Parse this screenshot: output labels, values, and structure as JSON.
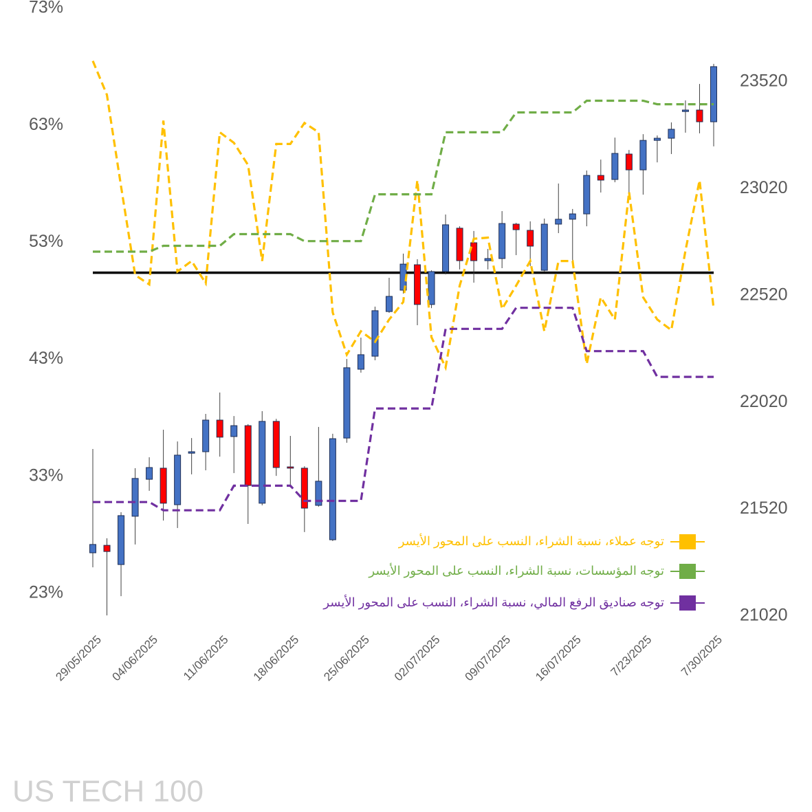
{
  "chart_data": {
    "type": "candlestick",
    "watermark": "US TECH 100",
    "categories": [
      "29/05/2025",
      null,
      null,
      null,
      "04/06/2025",
      null,
      null,
      null,
      null,
      "11/06/2025",
      null,
      null,
      null,
      null,
      "18/06/2025",
      null,
      null,
      null,
      null,
      "25/06/2025",
      null,
      null,
      null,
      null,
      "02/07/2025",
      null,
      null,
      null,
      null,
      "09/07/2025",
      null,
      null,
      null,
      null,
      "16/07/2025",
      null,
      null,
      null,
      null,
      "7/23/2025",
      null,
      null,
      null,
      null,
      "7/30/2025"
    ],
    "candles": {
      "axis": "y2",
      "up_color": "#4472c4",
      "down_color": "#ff0000",
      "open": [
        21316,
        21351,
        21261,
        21487,
        21660,
        21712,
        21541,
        21782,
        21789,
        21937,
        21860,
        21911,
        21548,
        21931,
        21718,
        21712,
        21538,
        21377,
        21853,
        22175,
        22236,
        22445,
        22545,
        22664,
        22478,
        22632,
        22835,
        22767,
        22683,
        22693,
        22854,
        22825,
        22638,
        22854,
        22877,
        22902,
        23082,
        23063,
        23182,
        23108,
        23246,
        23256,
        23381,
        23388,
        23333
      ],
      "high": [
        21802,
        21384,
        21506,
        21712,
        21763,
        21892,
        21837,
        21853,
        21966,
        22066,
        21956,
        21918,
        21979,
        21943,
        21863,
        21721,
        21905,
        21873,
        22223,
        22323,
        22468,
        22603,
        22716,
        22690,
        22638,
        22899,
        22844,
        22822,
        22738,
        22915,
        22860,
        22867,
        22880,
        23044,
        22925,
        23105,
        23156,
        23259,
        23201,
        23275,
        23269,
        23330,
        23433,
        23510,
        23604
      ],
      "low": [
        21248,
        21023,
        21113,
        21355,
        21606,
        21467,
        21432,
        21683,
        21702,
        21766,
        21689,
        21451,
        21538,
        21676,
        21622,
        21413,
        21532,
        21371,
        21831,
        22159,
        22217,
        22439,
        22529,
        22381,
        22461,
        22619,
        22642,
        22580,
        22642,
        22648,
        22709,
        22658,
        22629,
        22812,
        22664,
        22844,
        23002,
        23050,
        23002,
        22992,
        23143,
        23182,
        23282,
        23279,
        23218
      ],
      "close": [
        21355,
        21322,
        21490,
        21664,
        21715,
        21548,
        21773,
        21789,
        21937,
        21857,
        21911,
        21631,
        21931,
        21715,
        21712,
        21525,
        21651,
        21850,
        22182,
        22243,
        22449,
        22516,
        22667,
        22478,
        22632,
        22851,
        22683,
        22683,
        22693,
        22857,
        22828,
        22751,
        22854,
        22877,
        22902,
        23082,
        23060,
        23185,
        23108,
        23246,
        23256,
        23298,
        23388,
        23333,
        23591
      ]
    },
    "series": [
      {
        "name": "توجه عملاء، نسبة الشراء، النسب على المحور الأيسر",
        "color": "#ffc000",
        "values": [
          68.5,
          65.6,
          57.8,
          50.2,
          49.4,
          63.4,
          50.5,
          51.4,
          49.5,
          62.4,
          61.5,
          59.6,
          51.4,
          61.4,
          61.4,
          63.2,
          62.4,
          47.0,
          43.4,
          45.4,
          44.5,
          46.4,
          47.9,
          58.3,
          44.9,
          42.3,
          49.3,
          53.3,
          53.4,
          47.3,
          49.3,
          51.4,
          45.4,
          51.4,
          51.4,
          42.6,
          48.3,
          46.4,
          57.3,
          48.3,
          46.4,
          45.5,
          52.3,
          58.3,
          47.3
        ]
      },
      {
        "name": "توجه المؤسسات، نسبة الشراء، النسب على المحور الأيسر",
        "color": "#70ad47",
        "values": [
          52.2,
          52.2,
          52.2,
          52.2,
          52.2,
          52.7,
          52.7,
          52.7,
          52.7,
          52.7,
          53.7,
          53.7,
          53.7,
          53.7,
          53.7,
          53.1,
          53.1,
          53.1,
          53.1,
          53.1,
          57.1,
          57.1,
          57.1,
          57.1,
          57.1,
          62.4,
          62.4,
          62.4,
          62.4,
          62.4,
          64.1,
          64.1,
          64.1,
          64.1,
          64.1,
          65.1,
          65.1,
          65.1,
          65.1,
          65.1,
          64.8,
          64.8,
          64.8,
          64.8,
          64.8
        ]
      },
      {
        "name": "توجه صناديق الرفع المالي، نسبة الشراء، النسب على المحور الأيسر",
        "color": "#7030a0",
        "values": [
          30.8,
          30.8,
          30.8,
          30.8,
          30.8,
          30.1,
          30.1,
          30.1,
          30.1,
          30.1,
          32.2,
          32.2,
          32.2,
          32.2,
          32.2,
          30.9,
          30.9,
          30.9,
          30.9,
          30.9,
          38.8,
          38.8,
          38.8,
          38.8,
          38.8,
          45.6,
          45.6,
          45.6,
          45.6,
          45.6,
          47.4,
          47.4,
          47.4,
          47.4,
          47.4,
          43.7,
          43.7,
          43.7,
          43.7,
          43.7,
          41.5,
          41.5,
          41.5,
          41.5,
          41.5
        ]
      }
    ],
    "reference_line": {
      "value": 50.4,
      "color": "#000000"
    },
    "ylim": [
      23,
      73
    ],
    "yticks": [
      {
        "value": 23,
        "label": "23%"
      },
      {
        "value": 33,
        "label": "33%"
      },
      {
        "value": 43,
        "label": "43%"
      },
      {
        "value": 53,
        "label": "53%"
      },
      {
        "value": 63,
        "label": "63%"
      },
      {
        "value": 73,
        "label": "73%"
      }
    ],
    "y2lim": [
      21020,
      23520
    ],
    "y2ticks": [
      21020,
      21520,
      22020,
      22520,
      23020,
      23520
    ],
    "legend": "bottom-right"
  }
}
